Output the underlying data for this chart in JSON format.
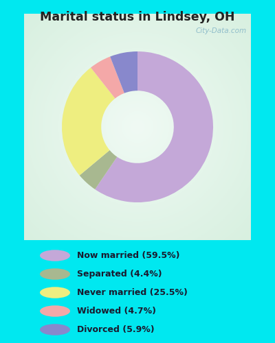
{
  "title": "Marital status in Lindsey, OH",
  "slices": [
    {
      "label": "Now married (59.5%)",
      "value": 59.5,
      "color": "#C4A8D8"
    },
    {
      "label": "Separated (4.4%)",
      "value": 4.4,
      "color": "#A8B890"
    },
    {
      "label": "Never married (25.5%)",
      "value": 25.5,
      "color": "#EEEE80"
    },
    {
      "label": "Widowed (4.7%)",
      "value": 4.7,
      "color": "#F4A8A8"
    },
    {
      "label": "Divorced (5.9%)",
      "value": 5.9,
      "color": "#8888CC"
    }
  ],
  "bg_outer": "#00E8F0",
  "chart_bg_corner": "#D8F0E0",
  "chart_bg_center": "#F0FAF4",
  "title_color": "#222222",
  "watermark": "City-Data.com",
  "donut_width": 0.52,
  "start_angle": 90
}
